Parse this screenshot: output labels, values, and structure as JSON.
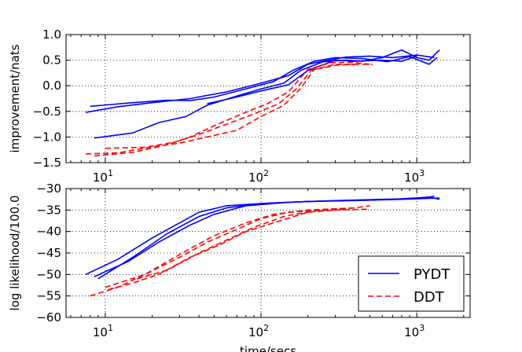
{
  "chart_data": [
    {
      "type": "line",
      "xscale": "log",
      "xlim": [
        5.6,
        2200
      ],
      "ylim": [
        -1.5,
        1.0
      ],
      "ylabel": "improvement/nats",
      "xlabel": "",
      "grid": true,
      "yticks": [
        {
          "v": 1.0,
          "label": "1.0"
        },
        {
          "v": 0.5,
          "label": "0.5"
        },
        {
          "v": 0.0,
          "label": "0.0"
        },
        {
          "v": -0.5,
          "label": "−0.5"
        },
        {
          "v": -1.0,
          "label": "−1.0"
        },
        {
          "v": -1.5,
          "label": "−1.5"
        }
      ],
      "xticks": [
        {
          "v": 10,
          "base": "10",
          "exp": "1"
        },
        {
          "v": 100,
          "base": "10",
          "exp": "2"
        },
        {
          "v": 1000,
          "base": "10",
          "exp": "3"
        }
      ],
      "series": [
        {
          "name": "PYDT",
          "color": "#0000ff",
          "style": "solid",
          "points": [
            [
              7.5,
              -0.52
            ],
            [
              12,
              -0.41
            ],
            [
              20,
              -0.33
            ],
            [
              35,
              -0.25
            ],
            [
              60,
              -0.12
            ],
            [
              100,
              0.05
            ],
            [
              150,
              0.2
            ],
            [
              200,
              0.42
            ],
            [
              250,
              0.48
            ],
            [
              350,
              0.56
            ],
            [
              500,
              0.58
            ],
            [
              700,
              0.55
            ],
            [
              1000,
              0.6
            ],
            [
              1300,
              0.55
            ]
          ]
        },
        {
          "name": "PYDT",
          "color": "#0000ff",
          "style": "solid",
          "points": [
            [
              8,
              -0.4
            ],
            [
              15,
              -0.33
            ],
            [
              25,
              -0.28
            ],
            [
              35,
              -0.29
            ],
            [
              50,
              -0.22
            ],
            [
              80,
              -0.06
            ],
            [
              120,
              0.08
            ],
            [
              160,
              0.3
            ],
            [
              220,
              0.48
            ],
            [
              300,
              0.55
            ],
            [
              450,
              0.53
            ],
            [
              650,
              0.47
            ],
            [
              900,
              0.57
            ],
            [
              1200,
              0.42
            ],
            [
              1350,
              0.55
            ]
          ]
        },
        {
          "name": "PYDT",
          "color": "#0000ff",
          "style": "solid",
          "points": [
            [
              8.5,
              -1.02
            ],
            [
              15,
              -0.92
            ],
            [
              22,
              -0.72
            ],
            [
              33,
              -0.6
            ],
            [
              45,
              -0.38
            ],
            [
              70,
              -0.2
            ],
            [
              100,
              -0.06
            ],
            [
              140,
              0.05
            ],
            [
              180,
              0.3
            ],
            [
              250,
              0.47
            ],
            [
              350,
              0.5
            ],
            [
              450,
              0.48
            ],
            [
              600,
              0.55
            ],
            [
              800,
              0.7
            ],
            [
              1000,
              0.55
            ],
            [
              1200,
              0.5
            ],
            [
              1400,
              0.7
            ]
          ]
        },
        {
          "name": "PYDT",
          "color": "#0000ff",
          "style": "solid",
          "points": [
            [
              45,
              -0.35
            ],
            [
              70,
              -0.22
            ],
            [
              100,
              -0.1
            ],
            [
              150,
              0.02
            ],
            [
              200,
              0.3
            ],
            [
              300,
              0.5
            ],
            [
              400,
              0.48
            ],
            [
              600,
              0.5
            ],
            [
              800,
              0.48
            ],
            [
              1000,
              0.58
            ]
          ]
        },
        {
          "name": "DDT",
          "color": "#ff0000",
          "style": "dashed",
          "points": [
            [
              7.5,
              -1.33
            ],
            [
              12,
              -1.31
            ],
            [
              20,
              -1.19
            ],
            [
              30,
              -1.12
            ],
            [
              45,
              -1.0
            ],
            [
              70,
              -0.87
            ],
            [
              100,
              -0.6
            ],
            [
              140,
              -0.38
            ],
            [
              180,
              -0.05
            ],
            [
              220,
              0.32
            ],
            [
              300,
              0.42
            ],
            [
              400,
              0.42
            ],
            [
              520,
              0.42
            ]
          ]
        },
        {
          "name": "DDT",
          "color": "#ff0000",
          "style": "dashed",
          "points": [
            [
              10,
              -1.22
            ],
            [
              18,
              -1.2
            ],
            [
              28,
              -1.1
            ],
            [
              40,
              -0.95
            ],
            [
              60,
              -0.75
            ],
            [
              90,
              -0.55
            ],
            [
              130,
              -0.35
            ],
            [
              170,
              -0.05
            ],
            [
              210,
              0.3
            ],
            [
              300,
              0.4
            ],
            [
              400,
              0.42
            ]
          ]
        },
        {
          "name": "DDT",
          "color": "#ff0000",
          "style": "dashed",
          "points": [
            [
              8.5,
              -1.37
            ],
            [
              15,
              -1.3
            ],
            [
              25,
              -1.15
            ],
            [
              35,
              -1.0
            ],
            [
              50,
              -0.78
            ],
            [
              75,
              -0.55
            ],
            [
              110,
              -0.35
            ],
            [
              150,
              -0.12
            ],
            [
              200,
              0.32
            ],
            [
              280,
              0.45
            ],
            [
              380,
              0.46
            ],
            [
              500,
              0.42
            ]
          ]
        }
      ]
    },
    {
      "type": "line",
      "xscale": "log",
      "xlim": [
        5.6,
        2200
      ],
      "ylim": [
        -60,
        -30
      ],
      "ylabel": "log likelihood/100.0",
      "xlabel": "time/secs",
      "grid": true,
      "legend": {
        "location": "bottom-right",
        "entries": [
          {
            "label": "PYDT",
            "color": "#0000ff",
            "style": "solid"
          },
          {
            "label": "DDT",
            "color": "#ff0000",
            "style": "dashed"
          }
        ]
      },
      "yticks": [
        {
          "v": -30,
          "label": "−30"
        },
        {
          "v": -35,
          "label": "−35"
        },
        {
          "v": -40,
          "label": "−40"
        },
        {
          "v": -45,
          "label": "−45"
        },
        {
          "v": -50,
          "label": "−50"
        },
        {
          "v": -55,
          "label": "−55"
        },
        {
          "v": -60,
          "label": "−60"
        }
      ],
      "xticks": [
        {
          "v": 10,
          "base": "10",
          "exp": "1"
        },
        {
          "v": 100,
          "base": "10",
          "exp": "2"
        },
        {
          "v": 1000,
          "base": "10",
          "exp": "3"
        }
      ],
      "series": [
        {
          "name": "PYDT",
          "color": "#0000ff",
          "style": "solid",
          "points": [
            [
              7.5,
              -50
            ],
            [
              12,
              -46.5
            ],
            [
              20,
              -41.5
            ],
            [
              30,
              -38
            ],
            [
              40,
              -35.5
            ],
            [
              60,
              -34
            ],
            [
              100,
              -33.5
            ],
            [
              200,
              -33
            ],
            [
              400,
              -32.8
            ],
            [
              800,
              -32.5
            ],
            [
              1400,
              -32.2
            ]
          ]
        },
        {
          "name": "PYDT",
          "color": "#0000ff",
          "style": "solid",
          "points": [
            [
              8.5,
              -50.5
            ],
            [
              14,
              -47
            ],
            [
              22,
              -42.5
            ],
            [
              35,
              -38.5
            ],
            [
              50,
              -36
            ],
            [
              80,
              -34
            ],
            [
              150,
              -33.2
            ],
            [
              300,
              -32.8
            ],
            [
              600,
              -32.5
            ],
            [
              1000,
              -32.3
            ],
            [
              1300,
              -31.8
            ]
          ]
        },
        {
          "name": "PYDT",
          "color": "#0000ff",
          "style": "solid",
          "points": [
            [
              9,
              -51
            ],
            [
              15,
              -46
            ],
            [
              25,
              -40.5
            ],
            [
              40,
              -36.5
            ],
            [
              60,
              -34.5
            ],
            [
              100,
              -33.5
            ],
            [
              200,
              -33
            ],
            [
              400,
              -32.7
            ],
            [
              700,
              -32.5
            ],
            [
              1200,
              -32
            ],
            [
              1400,
              -32.5
            ]
          ]
        },
        {
          "name": "DDT",
          "color": "#ff0000",
          "style": "dashed",
          "points": [
            [
              8,
              -55
            ],
            [
              12,
              -53
            ],
            [
              18,
              -50
            ],
            [
              25,
              -47
            ],
            [
              35,
              -44
            ],
            [
              50,
              -41
            ],
            [
              80,
              -38
            ],
            [
              120,
              -36
            ],
            [
              200,
              -35
            ],
            [
              400,
              -34.5
            ]
          ]
        },
        {
          "name": "DDT",
          "color": "#ff0000",
          "style": "dashed",
          "points": [
            [
              10,
              -53
            ],
            [
              18,
              -50
            ],
            [
              30,
              -46
            ],
            [
              45,
              -42.5
            ],
            [
              70,
              -39.5
            ],
            [
              100,
              -37
            ],
            [
              150,
              -35.5
            ],
            [
              250,
              -35
            ],
            [
              400,
              -34.5
            ],
            [
              500,
              -34
            ]
          ]
        },
        {
          "name": "DDT",
          "color": "#ff0000",
          "style": "dashed",
          "points": [
            [
              10.5,
              -53.5
            ],
            [
              15,
              -52
            ],
            [
              22,
              -50
            ],
            [
              35,
              -46
            ],
            [
              55,
              -43
            ],
            [
              80,
              -40
            ],
            [
              120,
              -38
            ],
            [
              200,
              -35.5
            ],
            [
              300,
              -35
            ],
            [
              500,
              -34.8
            ]
          ]
        },
        {
          "name": "DDT",
          "color": "#ff0000",
          "style": "dashed",
          "points": [
            [
              16,
              -51
            ],
            [
              25,
              -49
            ],
            [
              40,
              -45
            ],
            [
              60,
              -42
            ],
            [
              90,
              -39
            ],
            [
              140,
              -36.5
            ],
            [
              220,
              -35.2
            ],
            [
              350,
              -34.8
            ]
          ]
        }
      ]
    }
  ]
}
